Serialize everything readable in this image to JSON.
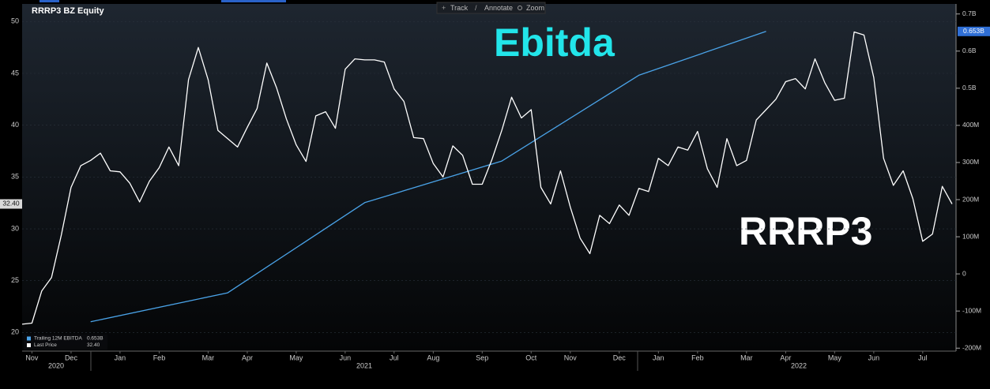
{
  "chart_data": {
    "type": "line",
    "title": "RRRP3 BZ Equity",
    "toolbar": [
      "Track",
      "Annotate",
      "Zoom"
    ],
    "annotations": [
      "Ebitda",
      "RRRP3"
    ],
    "categories": [
      null,
      "Nov",
      null,
      null,
      null,
      "Dec",
      null,
      null,
      null,
      null,
      "Jan",
      null,
      null,
      null,
      "Feb",
      null,
      null,
      null,
      null,
      "Mar",
      null,
      null,
      null,
      "Apr",
      null,
      null,
      null,
      null,
      "May",
      null,
      null,
      null,
      null,
      "Jun",
      null,
      null,
      null,
      null,
      "Jul",
      null,
      null,
      null,
      "Aug",
      null,
      null,
      null,
      null,
      "Sep",
      null,
      null,
      null,
      null,
      "Oct",
      null,
      null,
      null,
      "Nov",
      null,
      null,
      null,
      null,
      "Dec",
      null,
      null,
      null,
      "Jan",
      null,
      null,
      null,
      "Feb",
      null,
      null,
      null,
      null,
      "Mar",
      null,
      null,
      null,
      "Apr",
      null,
      null,
      null,
      null,
      "May",
      null,
      null,
      null,
      "Jun",
      null,
      null,
      null,
      null,
      "Jul",
      null,
      null,
      null
    ],
    "years": [
      "2020",
      "2021",
      "2022"
    ],
    "series": [
      {
        "name": "Trailing 12M EBITDA",
        "color": "#4aa3e8",
        "axis": "y2",
        "x": [
          7,
          21,
          35,
          49,
          63,
          76
        ],
        "values": [
          -129,
          -51,
          192,
          304,
          535,
          653
        ],
        "value_labels": [
          null,
          null,
          null,
          null,
          null,
          "0.653B"
        ]
      },
      {
        "name": "Last Price",
        "color": "#ffffff",
        "values": [
          20.8,
          20.9,
          24.0,
          25.3,
          29.4,
          34.0,
          36.1,
          36.6,
          37.3,
          35.6,
          35.5,
          34.4,
          32.6,
          34.6,
          35.9,
          37.9,
          36.1,
          44.4,
          47.5,
          44.4,
          39.5,
          38.7,
          37.9,
          39.8,
          41.6,
          46.0,
          43.6,
          40.6,
          38.1,
          36.5,
          40.9,
          41.3,
          39.7,
          45.4,
          46.4,
          46.3,
          46.3,
          46.1,
          43.5,
          42.3,
          38.8,
          38.7,
          36.3,
          35.0,
          38.0,
          37.1,
          34.3,
          34.3,
          36.7,
          39.5,
          42.7,
          40.7,
          41.5,
          34.0,
          32.4,
          35.6,
          32.1,
          29.1,
          27.6,
          31.3,
          30.5,
          32.3,
          31.3,
          33.9,
          33.6,
          36.8,
          36.1,
          37.9,
          37.6,
          39.4,
          35.8,
          34.0,
          38.7,
          36.1,
          36.6,
          40.5,
          41.5,
          42.5,
          44.2,
          44.5,
          43.5,
          46.4,
          44.1,
          42.4,
          42.6,
          49.0,
          48.7,
          44.6,
          36.8,
          34.2,
          35.6,
          32.9,
          28.8,
          29.5,
          34.1,
          32.4
        ],
        "value_labels": [
          null,
          null,
          null,
          null,
          null,
          null,
          null,
          null,
          null,
          null,
          null,
          null,
          null,
          null,
          null,
          null,
          null,
          null,
          null,
          null,
          null,
          null,
          null,
          null,
          null,
          null,
          null,
          null,
          null,
          null,
          null,
          null,
          null,
          null,
          null,
          null,
          null,
          null,
          null,
          null,
          null,
          null,
          null,
          null,
          null,
          null,
          null,
          null,
          null,
          null,
          null,
          null,
          null,
          null,
          null,
          null,
          null,
          null,
          null,
          null,
          null,
          null,
          null,
          null,
          null,
          null,
          null,
          null,
          null,
          null,
          null,
          null,
          null,
          null,
          null,
          null,
          null,
          null,
          null,
          null,
          null,
          null,
          null,
          null,
          null,
          null,
          null,
          null,
          null,
          null,
          null,
          null,
          null,
          null,
          null,
          "32.40"
        ]
      }
    ],
    "ylim": [
      18.2,
      51.7
    ],
    "yticks": [
      20,
      25,
      30,
      35,
      40,
      45,
      50
    ],
    "y2lim": [
      -208,
      727
    ],
    "y2ticks": [
      {
        "value": -200,
        "label": "-200M"
      },
      {
        "value": -100,
        "label": "-100M"
      },
      0,
      {
        "value": 100,
        "label": "100M"
      },
      {
        "value": 200,
        "label": "200M"
      },
      {
        "value": 300,
        "label": "300M"
      },
      {
        "value": 400,
        "label": "400M"
      },
      {
        "value": 500,
        "label": "0.5B"
      },
      {
        "value": 600,
        "label": "0.6B"
      },
      {
        "value": 700,
        "label": "0.7B"
      }
    ],
    "grid": true,
    "legend": "lower left"
  }
}
